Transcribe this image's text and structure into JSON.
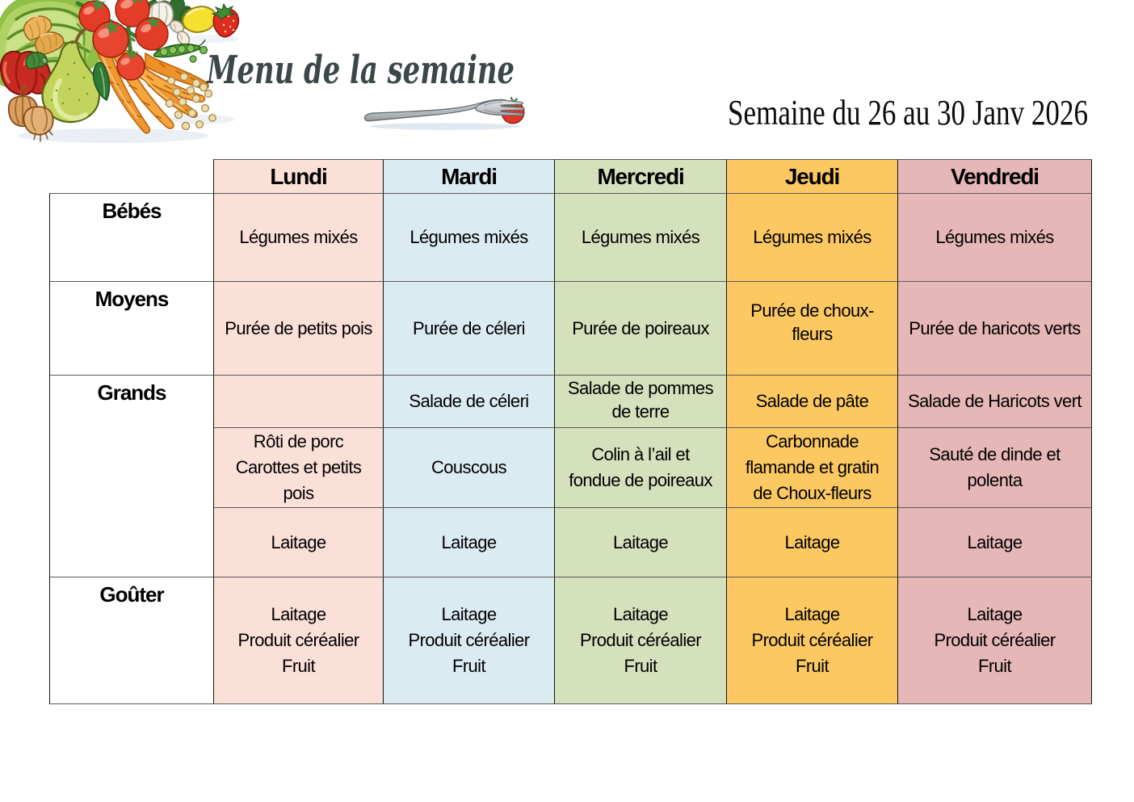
{
  "header": {
    "title": "Menu de la semaine",
    "title_color": "#3B4749",
    "subtitle": "Semaine du 26 au 30 Janv 2026",
    "illustration": "vegetables-fruits-illustration",
    "fork_illustration": "fork-with-cherry-tomato"
  },
  "menu_table": {
    "days": [
      "Lundi",
      "Mardi",
      "Mercredi",
      "Jeudi",
      "Vendredi"
    ],
    "day_colors": [
      "#FBE0D8",
      "#DBEBF2",
      "#D5E0BC",
      "#FCC862",
      "#E5B7B6"
    ],
    "row_labels": [
      "Bébés",
      "Moyens",
      "Grands",
      "Goûter"
    ],
    "body_rows": [
      {
        "id": "bebes",
        "cells": [
          [
            "Légumes mixés"
          ],
          [
            "Légumes mixés"
          ],
          [
            "Légumes mixés"
          ],
          [
            "Légumes mixés"
          ],
          [
            "Légumes mixés"
          ]
        ]
      },
      {
        "id": "moyens",
        "cells": [
          [
            "Purée de petits pois"
          ],
          [
            "Purée de céleri"
          ],
          [
            "Purée de poireaux"
          ],
          [
            "Purée de choux-",
            "fleurs"
          ],
          [
            "Purée de haricots verts"
          ]
        ]
      },
      {
        "id": "grands-entree",
        "cells": [
          [],
          [
            "Salade de céleri"
          ],
          [
            "Salade de pommes",
            "de terre"
          ],
          [
            "Salade de pâte"
          ],
          [
            "Salade de Haricots vert"
          ]
        ]
      },
      {
        "id": "grands-plat",
        "cells": [
          [
            "Rôti de porc",
            "Carottes et petits",
            "pois"
          ],
          [
            "Couscous"
          ],
          [
            "Colin à l’ail et",
            "fondue de poireaux"
          ],
          [
            "Carbonnade",
            "flamande et gratin",
            "de Choux-fleurs"
          ],
          [
            "Sauté de dinde et",
            "polenta"
          ]
        ]
      },
      {
        "id": "grands-laitage",
        "cells": [
          [
            "Laitage"
          ],
          [
            "Laitage"
          ],
          [
            "Laitage"
          ],
          [
            "Laitage"
          ],
          [
            "Laitage"
          ]
        ]
      },
      {
        "id": "gouter",
        "cells": [
          [
            "Laitage",
            "Produit céréalier",
            "Fruit"
          ],
          [
            "Laitage",
            "Produit céréalier",
            "Fruit"
          ],
          [
            "Laitage",
            "Produit céréalier",
            "Fruit"
          ],
          [
            "Laitage",
            "Produit céréalier",
            "Fruit"
          ],
          [
            "Laitage",
            "Produit céréalier",
            "Fruit"
          ]
        ]
      }
    ]
  }
}
